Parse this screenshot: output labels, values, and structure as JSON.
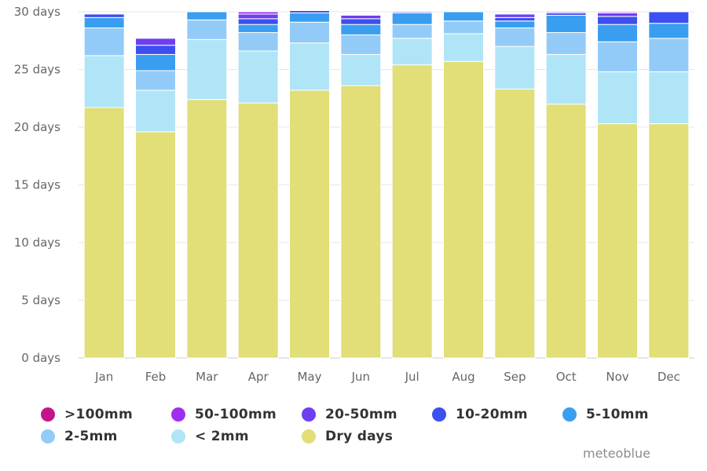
{
  "chart_data": {
    "type": "bar",
    "stacked": true,
    "categories": [
      "Jan",
      "Feb",
      "Mar",
      "Apr",
      "May",
      "Jun",
      "Jul",
      "Aug",
      "Sep",
      "Oct",
      "Nov",
      "Dec"
    ],
    "y_ticks": [
      "0 days",
      "5 days",
      "10 days",
      "15 days",
      "20 days",
      "25 days",
      "30 days"
    ],
    "ylim": [
      0,
      30
    ],
    "grid": true,
    "legend_position": "bottom",
    "series": [
      {
        "name": "Dry days",
        "color": "#e2de78",
        "values": [
          21.7,
          19.6,
          22.4,
          22.1,
          23.2,
          23.6,
          25.4,
          25.7,
          23.3,
          22.0,
          20.3,
          20.3
        ]
      },
      {
        "name": "< 2mm",
        "color": "#b0e5f7",
        "values": [
          4.5,
          3.6,
          5.2,
          4.5,
          4.1,
          2.7,
          2.3,
          2.4,
          3.7,
          4.3,
          4.5,
          4.5
        ]
      },
      {
        "name": "2-5mm",
        "color": "#93cbf8",
        "values": [
          2.4,
          1.7,
          1.7,
          1.6,
          1.8,
          1.7,
          1.2,
          1.1,
          1.6,
          1.9,
          2.6,
          2.9
        ]
      },
      {
        "name": "5-10mm",
        "color": "#3a9ef0",
        "values": [
          0.9,
          1.4,
          0.7,
          0.7,
          0.8,
          0.9,
          1.0,
          0.8,
          0.6,
          1.5,
          1.5,
          1.3
        ]
      },
      {
        "name": "10-20mm",
        "color": "#3c4ff0",
        "values": [
          0.3,
          0.8,
          0.0,
          0.5,
          0.2,
          0.5,
          0.1,
          0.0,
          0.3,
          0.2,
          0.7,
          1.0
        ]
      },
      {
        "name": "20-50mm",
        "color": "#6d3ff0",
        "values": [
          0.0,
          0.6,
          0.0,
          0.4,
          0.0,
          0.3,
          0.0,
          0.0,
          0.3,
          0.1,
          0.3,
          0.0
        ]
      },
      {
        "name": "50-100mm",
        "color": "#a02ef0",
        "values": [
          0.0,
          0.0,
          0.0,
          0.2,
          0.0,
          0.0,
          0.0,
          0.0,
          0.0,
          0.0,
          0.1,
          0.0
        ]
      },
      {
        "name": ">100mm",
        "color": "#c4148c",
        "values": [
          0.0,
          0.0,
          0.0,
          0.0,
          0.0,
          0.0,
          0.0,
          0.0,
          0.0,
          0.0,
          0.0,
          0.0
        ]
      }
    ]
  },
  "legend": [
    {
      "label": ">100mm",
      "color": "#c4148c"
    },
    {
      "label": "50-100mm",
      "color": "#a02ef0"
    },
    {
      "label": "20-50mm",
      "color": "#6d3ff0"
    },
    {
      "label": "10-20mm",
      "color": "#3c4ff0"
    },
    {
      "label": "5-10mm",
      "color": "#3a9ef0"
    },
    {
      "label": "2-5mm",
      "color": "#93cbf8"
    },
    {
      "label": "< 2mm",
      "color": "#b0e5f7"
    },
    {
      "label": "Dry days",
      "color": "#e2de78"
    }
  ],
  "credit": "meteoblue"
}
